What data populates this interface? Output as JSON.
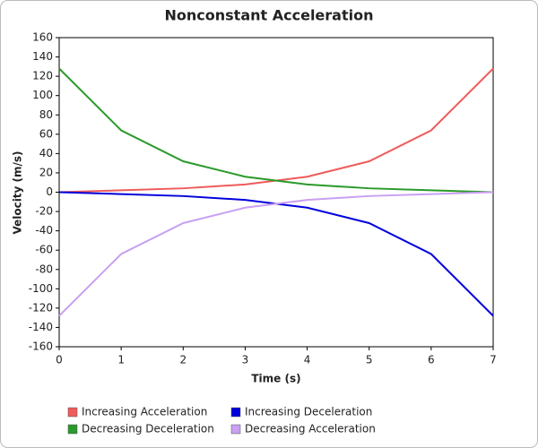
{
  "chart_data": {
    "type": "line",
    "title": "Nonconstant Acceleration",
    "x_label": "Time (s)",
    "y_label": "Velocity (m/s)",
    "x": [
      0,
      1,
      2,
      3,
      4,
      5,
      6,
      7
    ],
    "series": [
      {
        "name": "Increasing Acceleration",
        "color": "#ef5b5b",
        "values": [
          0,
          2,
          4,
          8,
          16,
          32,
          64,
          128
        ]
      },
      {
        "name": "Increasing Deceleration",
        "color": "#0000dd",
        "values": [
          0,
          -2,
          -4,
          -8,
          -16,
          -32,
          -64,
          -128
        ]
      },
      {
        "name": "Decreasing Deceleration",
        "color": "#2a9a2a",
        "values": [
          128,
          64,
          32,
          16,
          8,
          4,
          2,
          0
        ]
      },
      {
        "name": "Decreasing Acceleration",
        "color": "#c9a0f2",
        "values": [
          -128,
          -64,
          -32,
          -16,
          -8,
          -4,
          -2,
          0
        ]
      }
    ],
    "xlim": [
      0,
      7
    ],
    "xticks": [
      0,
      1,
      2,
      3,
      4,
      5,
      6,
      7
    ],
    "ylim": [
      -160,
      160
    ],
    "yticks": [
      -160,
      -140,
      -120,
      -100,
      -80,
      -60,
      -40,
      -20,
      0,
      20,
      40,
      60,
      80,
      100,
      120,
      140,
      160
    ],
    "grid": false
  }
}
